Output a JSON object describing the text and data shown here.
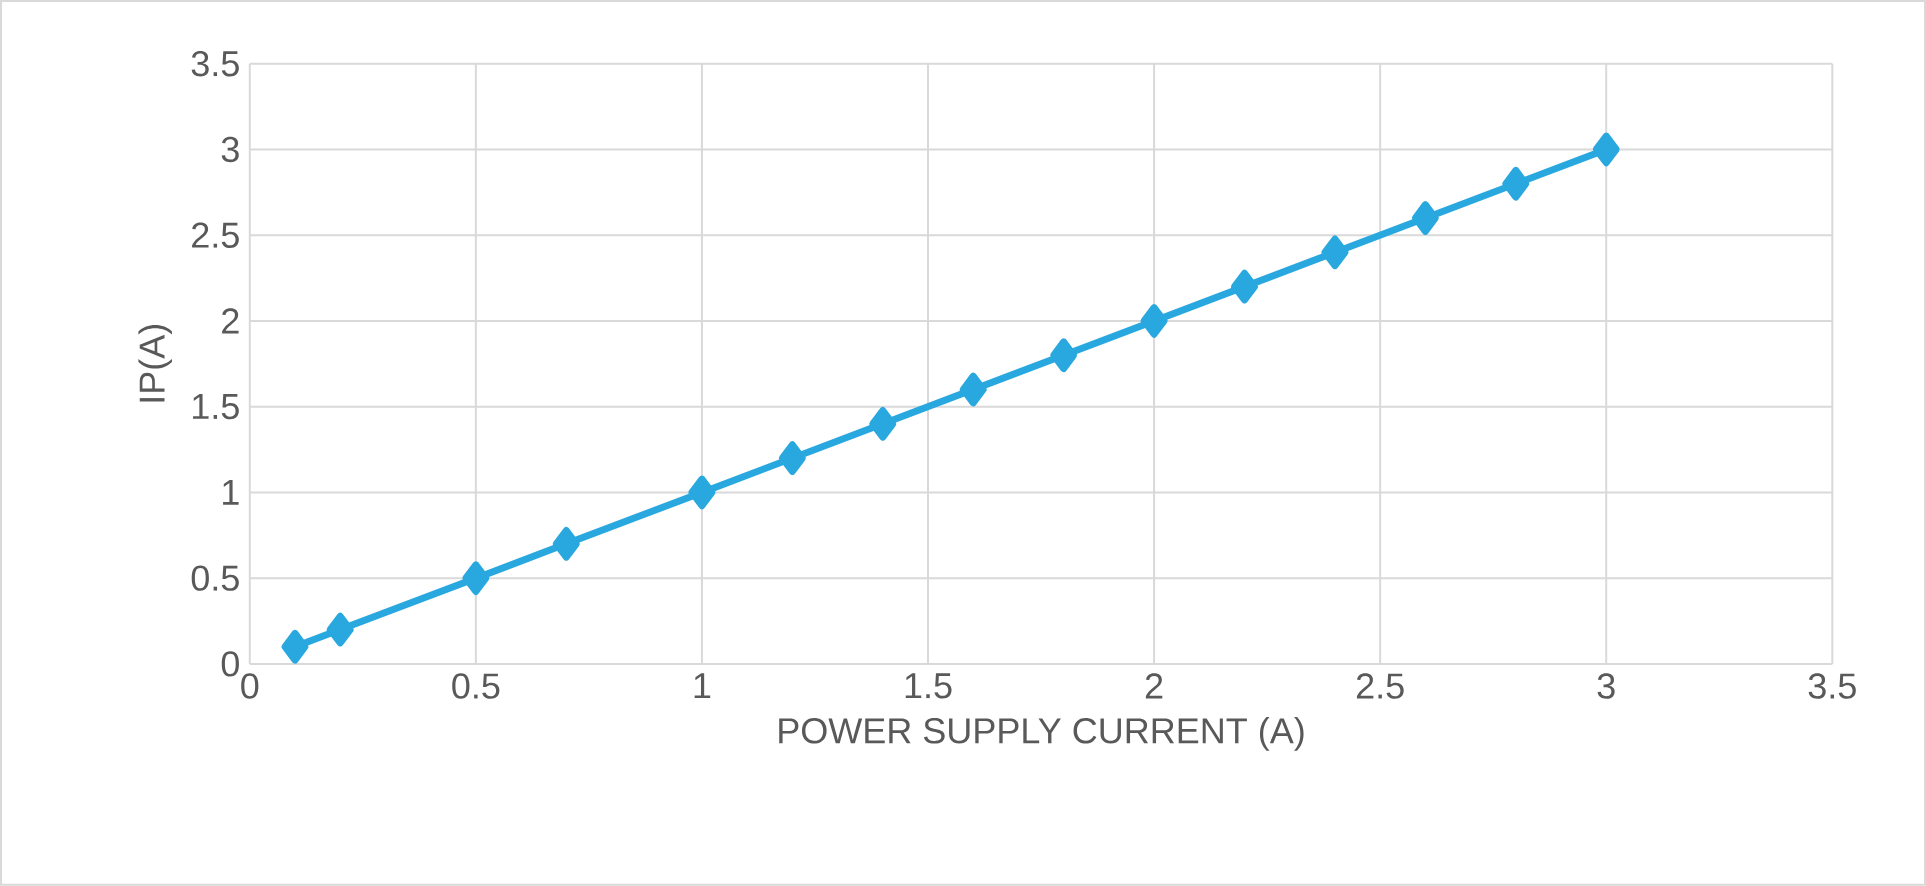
{
  "chart_data": {
    "type": "line",
    "xlabel": "POWER SUPPLY CURRENT (A)",
    "ylabel": "IP(A)",
    "x": [
      0.1,
      0.2,
      0.5,
      0.7,
      1,
      1.2,
      1.4,
      1.6,
      1.8,
      2,
      2.2,
      2.4,
      2.6,
      2.8,
      3
    ],
    "series": [
      {
        "color": "#29a8e0",
        "values": [
          0.1,
          0.2,
          0.5,
          0.7,
          1,
          1.2,
          1.4,
          1.6,
          1.8,
          2,
          2.2,
          2.4,
          2.6,
          2.8,
          3
        ]
      }
    ],
    "xlim": [
      0,
      3.5
    ],
    "ylim": [
      0,
      3.5
    ],
    "xticks": [
      0,
      0.5,
      1,
      1.5,
      2,
      2.5,
      3,
      3.5
    ],
    "yticks": [
      0,
      0.5,
      1,
      1.5,
      2,
      2.5,
      3,
      3.5
    ],
    "grid": true,
    "marker": "diamond",
    "line_style": "solid"
  }
}
